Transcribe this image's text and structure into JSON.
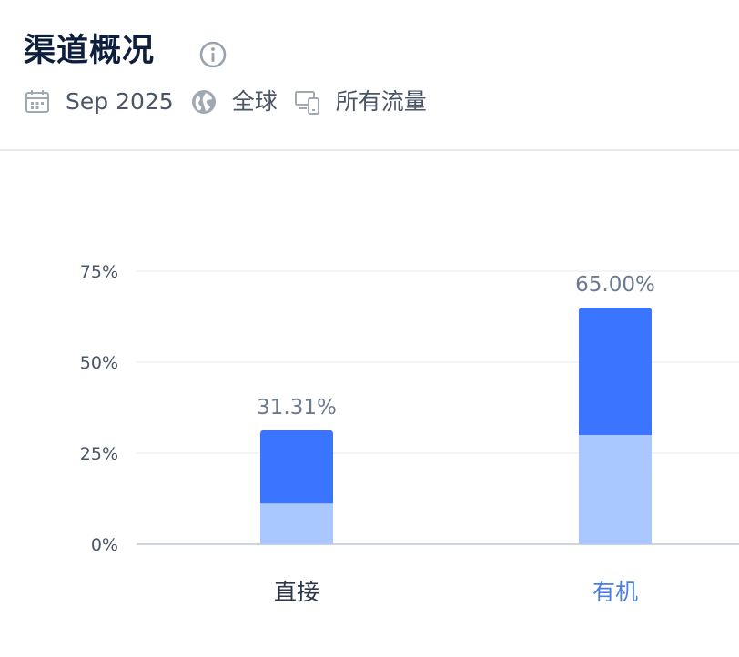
{
  "header": {
    "title": "渠道概况",
    "date": "Sep 2025",
    "region": "全球",
    "traffic": "所有流量"
  },
  "icons": {
    "info": "info-icon",
    "date": "calendar-icon",
    "region": "globe-icon",
    "traffic": "devices-icon"
  },
  "colors": {
    "primary": "#3b74ff",
    "secondary": "#a9c8ff",
    "axis": "#cfd5de",
    "grid": "#eef1f5",
    "highlight_label": "#4a7fe6",
    "normal_label": "#2d3748"
  },
  "chart_data": {
    "type": "bar",
    "stacked": true,
    "categories": [
      "直接",
      "有机"
    ],
    "highlight_category": "有机",
    "series": [
      {
        "values": [
          11.2,
          30.0
        ],
        "color": "#a9c8ff"
      },
      {
        "values": [
          20.11,
          35.0
        ],
        "color": "#3b74ff"
      }
    ],
    "totals": [
      31.31,
      65.0
    ],
    "total_labels": [
      "31.31%",
      "65.00%"
    ],
    "yticks": [
      0,
      25,
      50,
      75
    ],
    "ytick_labels": [
      "0%",
      "25%",
      "50%",
      "75%"
    ],
    "ylim": [
      0,
      75
    ],
    "grid": true
  }
}
